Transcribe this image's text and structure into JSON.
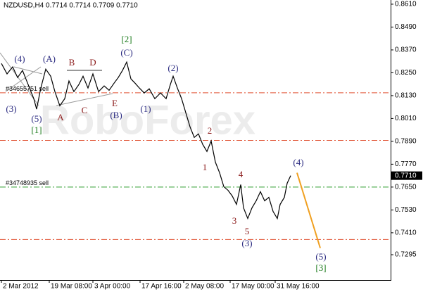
{
  "chart_data": {
    "type": "line",
    "title": "NZDUSD,H4  0.7714 0.7714 0.7709 0.7710",
    "watermark": "RoboForex",
    "x": [
      2,
      10,
      18,
      25,
      32,
      40,
      48,
      52,
      58,
      65,
      72,
      78,
      85,
      92,
      98,
      105,
      112,
      118,
      125,
      132,
      140,
      148,
      155,
      162,
      168,
      174,
      180,
      186,
      192,
      198,
      205,
      212,
      220,
      228,
      236,
      242,
      246,
      252,
      258,
      264,
      270,
      276,
      282,
      288,
      294,
      300,
      306,
      312,
      318,
      324,
      330,
      336,
      342,
      346,
      352,
      358,
      364,
      370,
      376,
      382,
      388,
      394,
      398,
      404,
      408,
      413
    ],
    "series": [
      {
        "name": "NZDUSD",
        "color": "#000000",
        "values": [
          0.8299,
          0.8244,
          0.8281,
          0.8225,
          0.8262,
          0.8188,
          0.8114,
          0.8059,
          0.817,
          0.8269,
          0.8232,
          0.8151,
          0.8077,
          0.8114,
          0.8207,
          0.8151,
          0.8188,
          0.8232,
          0.817,
          0.8244,
          0.8151,
          0.8181,
          0.8158,
          0.8195,
          0.8225,
          0.8262,
          0.8306,
          0.8218,
          0.8195,
          0.817,
          0.8144,
          0.8166,
          0.8114,
          0.8144,
          0.8114,
          0.8188,
          0.8232,
          0.817,
          0.8114,
          0.804,
          0.7966,
          0.7911,
          0.7929,
          0.7874,
          0.7837,
          0.7892,
          0.7781,
          0.7725,
          0.7652,
          0.7633,
          0.7603,
          0.7559,
          0.7663,
          0.7541,
          0.7485,
          0.7541,
          0.7578,
          0.7626,
          0.7578,
          0.7596,
          0.7522,
          0.7485,
          0.7559,
          0.7596,
          0.767,
          0.771
        ]
      }
    ],
    "projection": {
      "color": "#f0a020",
      "x": [
        422,
        455
      ],
      "values": [
        0.7725,
        0.733
      ]
    },
    "last_price": {
      "value": 0.771,
      "label": "0.7710"
    },
    "levels": [
      {
        "value": 0.8145,
        "color": "#e05030",
        "label": "#34655751 sell"
      },
      {
        "value": 0.7895,
        "color": "#e05030"
      },
      {
        "value": 0.7375,
        "color": "#e05030"
      },
      {
        "value": 0.765,
        "color": "#2a9a2a",
        "label": "#34748935 sell"
      }
    ],
    "annotations": [
      {
        "text": "(4)",
        "color": "#2a2a80"
      },
      {
        "text": "(3)",
        "color": "#2a2a80"
      },
      {
        "text": "(5)",
        "color": "#2a2a80"
      },
      {
        "text": "[1]",
        "color": "#1a7a1a"
      },
      {
        "text": "(A)",
        "color": "#2a2a80"
      },
      {
        "text": "B",
        "color": "#8b1a1a"
      },
      {
        "text": "D",
        "color": "#8b1a1a"
      },
      {
        "text": "A",
        "color": "#8b1a1a"
      },
      {
        "text": "C",
        "color": "#8b1a1a"
      },
      {
        "text": "E",
        "color": "#8b1a1a"
      },
      {
        "text": "(B)",
        "color": "#2a2a80"
      },
      {
        "text": "[2]",
        "color": "#1a7a1a"
      },
      {
        "text": "(C)",
        "color": "#2a2a80"
      },
      {
        "text": "(1)",
        "color": "#2a2a80"
      },
      {
        "text": "(2)",
        "color": "#2a2a80"
      },
      {
        "text": "2",
        "color": "#8b1a1a"
      },
      {
        "text": "1",
        "color": "#8b1a1a"
      },
      {
        "text": "4",
        "color": "#8b1a1a"
      },
      {
        "text": "3",
        "color": "#8b1a1a"
      },
      {
        "text": "5",
        "color": "#8b1a1a"
      },
      {
        "text": "(3)",
        "color": "#2a2a80"
      },
      {
        "text": "(4)",
        "color": "#2a2a80"
      },
      {
        "text": "(5)",
        "color": "#2a2a80"
      },
      {
        "text": "[3]",
        "color": "#1a7a1a"
      }
    ],
    "xlim": [
      0,
      555
    ],
    "xticks": [
      {
        "value": 2,
        "label": "2 Mar 2012"
      },
      {
        "value": 70,
        "label": "19 Mar 08:00"
      },
      {
        "value": 132,
        "label": "3 Apr 00:00"
      },
      {
        "value": 199,
        "label": "17 Apr 16:00"
      },
      {
        "value": 261,
        "label": "2 May 08:00"
      },
      {
        "value": 327,
        "label": "17 May 00:00"
      },
      {
        "value": 391,
        "label": "31 May 16:00"
      }
    ],
    "ylim": [
      0.7162,
      0.8632
    ],
    "yticks": [
      {
        "value": 0.861,
        "label": "0.8610"
      },
      {
        "value": 0.849,
        "label": "0.8490"
      },
      {
        "value": 0.837,
        "label": "0.8370"
      },
      {
        "value": 0.825,
        "label": "0.8250"
      },
      {
        "value": 0.813,
        "label": "0.8130"
      },
      {
        "value": 0.801,
        "label": "0.8010"
      },
      {
        "value": 0.789,
        "label": "0.7890"
      },
      {
        "value": 0.777,
        "label": "0.7770"
      },
      {
        "value": 0.765,
        "label": "0.7650"
      },
      {
        "value": 0.753,
        "label": "0.7530"
      },
      {
        "value": 0.741,
        "label": "0.7410"
      },
      {
        "value": 0.7295,
        "label": "0.7295"
      }
    ]
  }
}
